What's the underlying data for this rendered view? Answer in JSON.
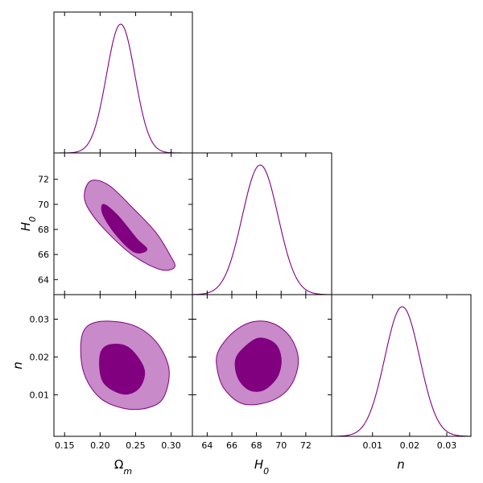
{
  "chart_data": {
    "type": "corner",
    "color": "#800080",
    "contour_colors": {
      "outer": "#c88ac8",
      "inner": "#800080",
      "line": "#800080"
    },
    "parameters": [
      {
        "key": "om",
        "label_main": "Ω",
        "label_sub": "m",
        "range": [
          0.135,
          0.33
        ],
        "ticks": [
          "0.15",
          "0.20",
          "0.25",
          "0.30"
        ],
        "tick_values": [
          0.15,
          0.2,
          0.25,
          0.3
        ],
        "mean": 0.229,
        "sigma": 0.02
      },
      {
        "key": "h0",
        "label_main": "H",
        "label_sub": "0",
        "range": [
          62.8,
          74.1
        ],
        "ticks": [
          "64",
          "66",
          "68",
          "70",
          "72"
        ],
        "tick_values": [
          64,
          66,
          68,
          70,
          72
        ],
        "mean": 68.3,
        "sigma": 1.45
      },
      {
        "key": "n",
        "label_main": "n",
        "label_sub": "",
        "range": [
          -0.001,
          0.0365
        ],
        "ticks": [
          "0.01",
          "0.02",
          "0.03"
        ],
        "tick_values": [
          0.01,
          0.02,
          0.03
        ],
        "mean": 0.018,
        "sigma": 0.0047
      }
    ],
    "panels": {
      "om_h0": {
        "outer": [
          [
            0.188,
            71.9
          ],
          [
            0.213,
            71.5
          ],
          [
            0.248,
            69.6
          ],
          [
            0.278,
            67.8
          ],
          [
            0.298,
            66.0
          ],
          [
            0.305,
            65.0
          ],
          [
            0.285,
            64.8
          ],
          [
            0.247,
            65.9
          ],
          [
            0.208,
            67.9
          ],
          [
            0.183,
            69.7
          ],
          [
            0.178,
            70.9
          ]
        ],
        "inner": [
          [
            0.205,
            70.0
          ],
          [
            0.225,
            69.1
          ],
          [
            0.251,
            67.3
          ],
          [
            0.266,
            66.4
          ],
          [
            0.248,
            66.2
          ],
          [
            0.222,
            67.6
          ],
          [
            0.204,
            69.2
          ]
        ]
      },
      "om_n": {
        "outer": [
          [
            0.175,
            0.026
          ],
          [
            0.197,
            0.0293
          ],
          [
            0.245,
            0.0285
          ],
          [
            0.279,
            0.024
          ],
          [
            0.297,
            0.0168
          ],
          [
            0.29,
            0.0095
          ],
          [
            0.27,
            0.0067
          ],
          [
            0.236,
            0.0063
          ],
          [
            0.199,
            0.0093
          ],
          [
            0.176,
            0.0165
          ]
        ],
        "inner": [
          [
            0.2,
            0.0205
          ],
          [
            0.213,
            0.0232
          ],
          [
            0.24,
            0.0225
          ],
          [
            0.262,
            0.0168
          ],
          [
            0.255,
            0.0118
          ],
          [
            0.232,
            0.0102
          ],
          [
            0.204,
            0.0135
          ]
        ]
      },
      "h0_n": {
        "outer": [
          [
            64.9,
            0.0215
          ],
          [
            66.1,
            0.0265
          ],
          [
            67.7,
            0.0293
          ],
          [
            69.4,
            0.0288
          ],
          [
            70.8,
            0.025
          ],
          [
            71.4,
            0.019
          ],
          [
            70.8,
            0.0125
          ],
          [
            69.3,
            0.0085
          ],
          [
            67.0,
            0.0075
          ],
          [
            65.4,
            0.0115
          ],
          [
            64.8,
            0.017
          ]
        ],
        "inner": [
          [
            66.3,
            0.0192
          ],
          [
            67.0,
            0.0225
          ],
          [
            68.2,
            0.025
          ],
          [
            69.5,
            0.0235
          ],
          [
            70.0,
            0.0195
          ],
          [
            69.7,
            0.0148
          ],
          [
            68.6,
            0.0113
          ],
          [
            67.4,
            0.0113
          ],
          [
            66.5,
            0.0145
          ]
        ]
      }
    }
  }
}
